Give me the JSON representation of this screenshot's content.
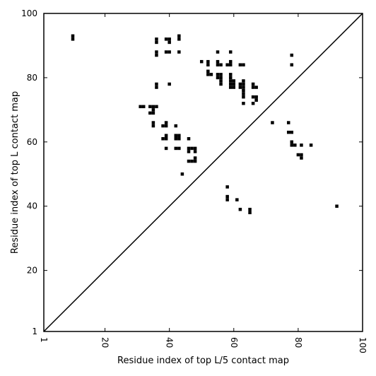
{
  "chart_data": {
    "type": "scatter",
    "title": "",
    "xlabel": "Residue index of top L/5 contact map",
    "ylabel": "Residue index of top L contact map",
    "xlim": [
      1,
      100
    ],
    "ylim": [
      1,
      100
    ],
    "x_ticks": [
      1,
      20,
      40,
      60,
      80,
      100
    ],
    "y_ticks": [
      1,
      20,
      40,
      60,
      80,
      100
    ],
    "diagonal": true,
    "marker_color": "#000000",
    "points": [
      [
        10,
        92
      ],
      [
        10,
        93
      ],
      [
        36,
        91
      ],
      [
        36,
        92
      ],
      [
        39,
        92
      ],
      [
        40,
        91
      ],
      [
        40,
        92
      ],
      [
        43,
        92
      ],
      [
        43,
        93
      ],
      [
        36,
        87
      ],
      [
        36,
        88
      ],
      [
        39,
        88
      ],
      [
        40,
        88
      ],
      [
        43,
        88
      ],
      [
        55,
        88
      ],
      [
        59,
        88
      ],
      [
        50,
        85
      ],
      [
        52,
        84
      ],
      [
        52,
        85
      ],
      [
        55,
        84
      ],
      [
        55,
        85
      ],
      [
        56,
        84
      ],
      [
        58,
        84
      ],
      [
        59,
        84
      ],
      [
        59,
        85
      ],
      [
        62,
        84
      ],
      [
        63,
        84
      ],
      [
        52,
        81
      ],
      [
        52,
        82
      ],
      [
        53,
        81
      ],
      [
        55,
        80
      ],
      [
        55,
        81
      ],
      [
        56,
        78
      ],
      [
        56,
        79
      ],
      [
        56,
        80
      ],
      [
        56,
        81
      ],
      [
        59,
        77
      ],
      [
        59,
        78
      ],
      [
        59,
        79
      ],
      [
        59,
        80
      ],
      [
        59,
        81
      ],
      [
        60,
        77
      ],
      [
        60,
        78
      ],
      [
        60,
        79
      ],
      [
        62,
        77
      ],
      [
        62,
        78
      ],
      [
        63,
        74
      ],
      [
        63,
        75
      ],
      [
        63,
        76
      ],
      [
        63,
        77
      ],
      [
        63,
        78
      ],
      [
        63,
        79
      ],
      [
        63,
        72
      ],
      [
        66,
        77
      ],
      [
        66,
        78
      ],
      [
        67,
        77
      ],
      [
        66,
        74
      ],
      [
        67,
        73
      ],
      [
        67,
        74
      ],
      [
        66,
        72
      ],
      [
        36,
        77
      ],
      [
        36,
        78
      ],
      [
        40,
        78
      ],
      [
        78,
        87
      ],
      [
        78,
        84
      ],
      [
        31,
        71
      ],
      [
        32,
        71
      ],
      [
        34,
        71
      ],
      [
        35,
        71
      ],
      [
        36,
        71
      ],
      [
        34,
        69
      ],
      [
        35,
        69
      ],
      [
        35,
        70
      ],
      [
        35,
        65
      ],
      [
        35,
        66
      ],
      [
        38,
        65
      ],
      [
        39,
        65
      ],
      [
        39,
        66
      ],
      [
        42,
        65
      ],
      [
        38,
        61
      ],
      [
        39,
        61
      ],
      [
        39,
        62
      ],
      [
        42,
        61
      ],
      [
        42,
        62
      ],
      [
        43,
        61
      ],
      [
        43,
        62
      ],
      [
        39,
        58
      ],
      [
        42,
        58
      ],
      [
        43,
        58
      ],
      [
        46,
        61
      ],
      [
        46,
        58
      ],
      [
        47,
        58
      ],
      [
        48,
        58
      ],
      [
        46,
        57
      ],
      [
        48,
        57
      ],
      [
        46,
        54
      ],
      [
        47,
        54
      ],
      [
        48,
        54
      ],
      [
        48,
        55
      ],
      [
        44,
        50
      ],
      [
        72,
        66
      ],
      [
        77,
        66
      ],
      [
        77,
        63
      ],
      [
        78,
        63
      ],
      [
        78,
        60
      ],
      [
        78,
        59
      ],
      [
        79,
        59
      ],
      [
        81,
        59
      ],
      [
        84,
        59
      ],
      [
        80,
        56
      ],
      [
        81,
        56
      ],
      [
        81,
        55
      ],
      [
        58,
        46
      ],
      [
        58,
        42
      ],
      [
        58,
        43
      ],
      [
        61,
        42
      ],
      [
        62,
        39
      ],
      [
        65,
        38
      ],
      [
        65,
        39
      ],
      [
        92,
        40
      ]
    ]
  }
}
